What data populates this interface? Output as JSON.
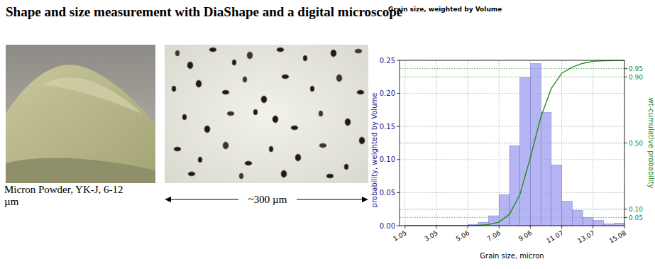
{
  "header": {
    "title": "Shape and size measurement with DiaShape and a digital microscope"
  },
  "images": {
    "caption": "Micron Powder, YK-J, 6-12 µm",
    "scale_label": "~300 µm"
  },
  "chart_data": {
    "type": "histogram",
    "title": "Grain size, weighted by Volume",
    "x_label": "Grain size, micron",
    "y_label": "probability, weighted by Volume",
    "y2_label": "wt-cumulative probability",
    "bins": [
      1.05,
      1.72,
      2.39,
      3.05,
      3.72,
      4.39,
      5.06,
      5.73,
      6.39,
      7.06,
      7.73,
      8.4,
      9.07,
      9.74,
      10.4,
      11.07,
      11.74,
      12.41,
      13.08,
      13.74,
      14.41,
      15.08
    ],
    "values": [
      0,
      0,
      0,
      0,
      0,
      0,
      0.002,
      0.005,
      0.015,
      0.047,
      0.121,
      0.224,
      0.245,
      0.171,
      0.092,
      0.037,
      0.023,
      0.012,
      0.008,
      0.003,
      0.004
    ],
    "color": "#9c9cf0",
    "series": [
      {
        "type": "line",
        "axis": "y2",
        "color": "#228b22",
        "x": [
          1.05,
          1.72,
          2.39,
          3.05,
          3.72,
          4.39,
          5.06,
          5.73,
          6.39,
          7.06,
          7.73,
          8.4,
          9.07,
          9.74,
          10.4,
          11.07,
          11.74,
          12.41,
          13.08,
          13.74,
          14.41,
          15.08
        ],
        "values": [
          0,
          0,
          0,
          0,
          0,
          0,
          0,
          0.002,
          0.007,
          0.022,
          0.069,
          0.19,
          0.414,
          0.659,
          0.83,
          0.922,
          0.959,
          0.982,
          0.994,
          0.998,
          0.999,
          1.0
        ]
      }
    ],
    "xlim": [
      0.7,
      15.08
    ],
    "xticks": [
      1.05,
      3.05,
      5.06,
      7.06,
      9.06,
      11.07,
      13.07,
      15.08
    ],
    "ylim": [
      0,
      0.25
    ],
    "yticks": [
      {
        "value": 0,
        "label": "0.00"
      },
      0.05,
      {
        "value": 0.1,
        "label": "0.10"
      },
      0.15,
      {
        "value": 0.2,
        "label": "0.20"
      },
      0.25
    ],
    "y2lim": [
      0,
      1
    ],
    "y2ticks": [
      0.05,
      {
        "value": 0.1,
        "label": "0.10"
      },
      {
        "value": 0.5,
        "label": "0.50"
      },
      {
        "value": 0.9,
        "label": "0.90"
      },
      0.95
    ],
    "grid": true
  }
}
